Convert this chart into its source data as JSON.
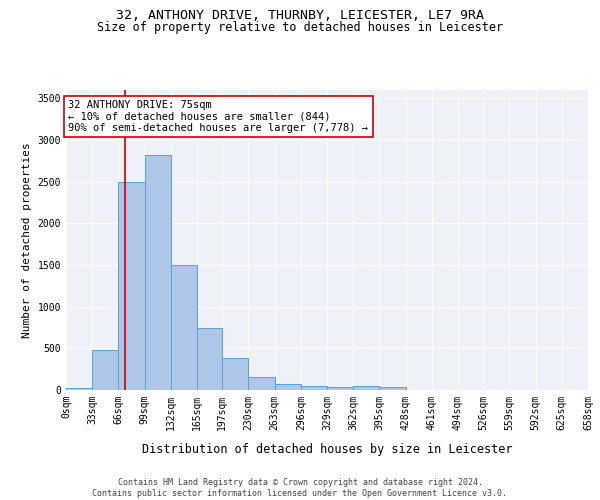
{
  "title_line1": "32, ANTHONY DRIVE, THURNBY, LEICESTER, LE7 9RA",
  "title_line2": "Size of property relative to detached houses in Leicester",
  "xlabel": "Distribution of detached houses by size in Leicester",
  "ylabel": "Number of detached properties",
  "bar_bins": [
    0,
    33,
    66,
    99,
    132,
    165,
    197,
    230,
    263,
    296,
    329,
    362,
    395,
    428,
    461,
    494,
    526,
    559,
    592,
    625,
    658
  ],
  "bar_values": [
    20,
    480,
    2500,
    2820,
    1500,
    740,
    390,
    155,
    75,
    50,
    40,
    50,
    40,
    0,
    0,
    0,
    0,
    0,
    0,
    0
  ],
  "bar_color": "#aec6e8",
  "bar_edge_color": "#5a9fd4",
  "property_line_x": 75,
  "annotation_text": "32 ANTHONY DRIVE: 75sqm\n← 10% of detached houses are smaller (844)\n90% of semi-detached houses are larger (7,778) →",
  "annotation_box_color": "#ffffff",
  "annotation_border_color": "#cc0000",
  "vline_color": "#cc0000",
  "ylim": [
    0,
    3600
  ],
  "yticks": [
    0,
    500,
    1000,
    1500,
    2000,
    2500,
    3000,
    3500
  ],
  "bg_color": "#eef2f8",
  "footer_line1": "Contains HM Land Registry data © Crown copyright and database right 2024.",
  "footer_line2": "Contains public sector information licensed under the Open Government Licence v3.0.",
  "title_fontsize": 9.5,
  "subtitle_fontsize": 8.5,
  "tick_label_fontsize": 7,
  "ylabel_fontsize": 8,
  "xlabel_fontsize": 8.5,
  "annotation_fontsize": 7.5,
  "footer_fontsize": 6
}
